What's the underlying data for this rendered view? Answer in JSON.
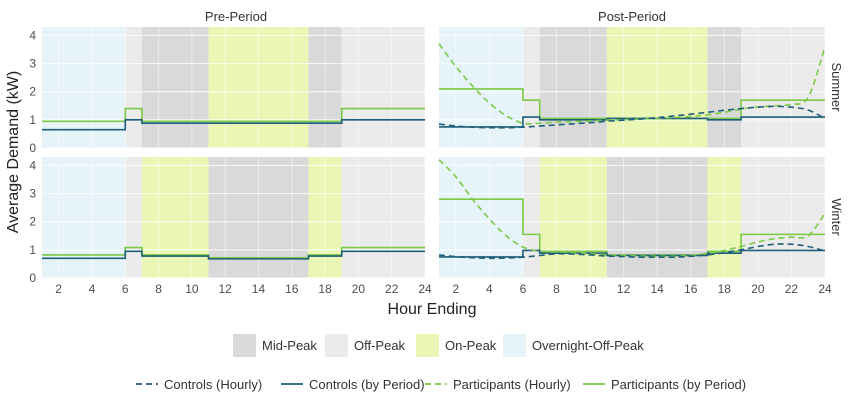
{
  "chart_data": {
    "type": "line",
    "xlabel": "Hour Ending",
    "ylabel": "Average Demand (kW)",
    "xlim": [
      1,
      24
    ],
    "ylim": [
      0,
      4.3
    ],
    "x_ticks": [
      2,
      4,
      6,
      8,
      10,
      12,
      14,
      16,
      18,
      20,
      22,
      24
    ],
    "y_ticks": [
      0,
      1,
      2,
      3,
      4
    ],
    "columns": [
      "Pre-Period",
      "Post-Period"
    ],
    "rows": [
      "Summer",
      "Winter"
    ],
    "colors": {
      "Mid-Peak": "#d9d9d9",
      "Off-Peak": "#ebebeb",
      "On-Peak": "#eaf7b4",
      "Overnight-Off-Peak": "#e6f4fa",
      "controls": "#1f5e7a",
      "participants": "#7ac943"
    },
    "period_legend": [
      "Mid-Peak",
      "Off-Peak",
      "On-Peak",
      "Overnight-Off-Peak"
    ],
    "line_legend": [
      "Controls (Hourly)",
      "Controls (by Period)",
      "Participants (Hourly)",
      "Participants (by Period)"
    ],
    "panels": [
      {
        "column": "Pre-Period",
        "row": "Summer",
        "periods": [
          {
            "start": 1,
            "end": 6,
            "type": "Overnight-Off-Peak"
          },
          {
            "start": 6,
            "end": 7,
            "type": "Off-Peak"
          },
          {
            "start": 7,
            "end": 11,
            "type": "Mid-Peak"
          },
          {
            "start": 11,
            "end": 17,
            "type": "On-Peak"
          },
          {
            "start": 17,
            "end": 19,
            "type": "Mid-Peak"
          },
          {
            "start": 19,
            "end": 24,
            "type": "Off-Peak"
          }
        ],
        "controls_by_period": [
          0.65,
          1.0,
          0.88,
          0.88,
          0.88,
          1.0
        ],
        "participants_by_period": [
          0.95,
          1.4,
          0.95,
          0.95,
          0.95,
          1.4
        ]
      },
      {
        "column": "Post-Period",
        "row": "Summer",
        "periods": [
          {
            "start": 1,
            "end": 6,
            "type": "Overnight-Off-Peak"
          },
          {
            "start": 6,
            "end": 7,
            "type": "Off-Peak"
          },
          {
            "start": 7,
            "end": 11,
            "type": "Mid-Peak"
          },
          {
            "start": 11,
            "end": 17,
            "type": "On-Peak"
          },
          {
            "start": 17,
            "end": 19,
            "type": "Mid-Peak"
          },
          {
            "start": 19,
            "end": 24,
            "type": "Off-Peak"
          }
        ],
        "controls_by_period": [
          0.75,
          1.1,
          1.0,
          1.05,
          1.0,
          1.1
        ],
        "participants_by_period": [
          2.1,
          1.7,
          1.05,
          1.05,
          1.05,
          1.7
        ],
        "controls_hourly": [
          [
            1,
            0.85
          ],
          [
            2,
            0.78
          ],
          [
            3,
            0.74
          ],
          [
            4,
            0.72
          ],
          [
            5,
            0.72
          ],
          [
            6,
            0.74
          ],
          [
            7,
            0.78
          ],
          [
            8,
            0.82
          ],
          [
            9,
            0.86
          ],
          [
            10,
            0.9
          ],
          [
            11,
            0.95
          ],
          [
            12,
            0.99
          ],
          [
            13,
            1.03
          ],
          [
            14,
            1.08
          ],
          [
            15,
            1.14
          ],
          [
            16,
            1.2
          ],
          [
            17,
            1.27
          ],
          [
            18,
            1.34
          ],
          [
            19,
            1.4
          ],
          [
            20,
            1.45
          ],
          [
            21,
            1.48
          ],
          [
            22,
            1.45
          ],
          [
            23,
            1.35
          ],
          [
            24,
            1.05
          ]
        ],
        "participants_hourly": [
          [
            1,
            3.7
          ],
          [
            2,
            2.9
          ],
          [
            3,
            2.2
          ],
          [
            4,
            1.6
          ],
          [
            5,
            1.15
          ],
          [
            6,
            0.88
          ],
          [
            7,
            0.88
          ],
          [
            8,
            0.92
          ],
          [
            9,
            0.94
          ],
          [
            10,
            0.96
          ],
          [
            11,
            0.99
          ],
          [
            12,
            1.01
          ],
          [
            13,
            1.03
          ],
          [
            14,
            1.05
          ],
          [
            15,
            1.08
          ],
          [
            16,
            1.12
          ],
          [
            17,
            1.18
          ],
          [
            18,
            1.27
          ],
          [
            19,
            1.38
          ],
          [
            20,
            1.46
          ],
          [
            21,
            1.5
          ],
          [
            22,
            1.55
          ],
          [
            23,
            1.8
          ],
          [
            24,
            3.6
          ]
        ]
      },
      {
        "column": "Pre-Period",
        "row": "Winter",
        "periods": [
          {
            "start": 1,
            "end": 6,
            "type": "Overnight-Off-Peak"
          },
          {
            "start": 6,
            "end": 7,
            "type": "Off-Peak"
          },
          {
            "start": 7,
            "end": 11,
            "type": "On-Peak"
          },
          {
            "start": 11,
            "end": 17,
            "type": "Mid-Peak"
          },
          {
            "start": 17,
            "end": 19,
            "type": "On-Peak"
          },
          {
            "start": 19,
            "end": 24,
            "type": "Off-Peak"
          }
        ],
        "controls_by_period": [
          0.7,
          0.95,
          0.78,
          0.68,
          0.78,
          0.95
        ],
        "participants_by_period": [
          0.82,
          1.08,
          0.82,
          0.72,
          0.82,
          1.08
        ]
      },
      {
        "column": "Post-Period",
        "row": "Winter",
        "periods": [
          {
            "start": 1,
            "end": 6,
            "type": "Overnight-Off-Peak"
          },
          {
            "start": 6,
            "end": 7,
            "type": "Off-Peak"
          },
          {
            "start": 7,
            "end": 11,
            "type": "On-Peak"
          },
          {
            "start": 11,
            "end": 17,
            "type": "Mid-Peak"
          },
          {
            "start": 17,
            "end": 19,
            "type": "On-Peak"
          },
          {
            "start": 19,
            "end": 24,
            "type": "Off-Peak"
          }
        ],
        "controls_by_period": [
          0.75,
          0.98,
          0.88,
          0.8,
          0.88,
          0.98
        ],
        "participants_by_period": [
          2.8,
          1.55,
          0.95,
          0.82,
          0.95,
          1.55
        ],
        "controls_hourly": [
          [
            1,
            0.82
          ],
          [
            2,
            0.76
          ],
          [
            3,
            0.72
          ],
          [
            4,
            0.7
          ],
          [
            5,
            0.71
          ],
          [
            6,
            0.74
          ],
          [
            7,
            0.8
          ],
          [
            8,
            0.86
          ],
          [
            9,
            0.85
          ],
          [
            10,
            0.82
          ],
          [
            11,
            0.78
          ],
          [
            12,
            0.76
          ],
          [
            13,
            0.74
          ],
          [
            14,
            0.74
          ],
          [
            15,
            0.74
          ],
          [
            16,
            0.77
          ],
          [
            17,
            0.82
          ],
          [
            18,
            0.9
          ],
          [
            19,
            1.0
          ],
          [
            20,
            1.12
          ],
          [
            21,
            1.2
          ],
          [
            22,
            1.2
          ],
          [
            23,
            1.12
          ],
          [
            24,
            0.96
          ]
        ],
        "participants_hourly": [
          [
            1,
            4.2
          ],
          [
            2,
            3.6
          ],
          [
            3,
            2.8
          ],
          [
            4,
            2.1
          ],
          [
            5,
            1.5
          ],
          [
            6,
            1.1
          ],
          [
            7,
            0.95
          ],
          [
            8,
            0.92
          ],
          [
            9,
            0.9
          ],
          [
            10,
            0.86
          ],
          [
            11,
            0.83
          ],
          [
            12,
            0.8
          ],
          [
            13,
            0.78
          ],
          [
            14,
            0.77
          ],
          [
            15,
            0.77
          ],
          [
            16,
            0.8
          ],
          [
            17,
            0.87
          ],
          [
            18,
            0.98
          ],
          [
            19,
            1.12
          ],
          [
            20,
            1.28
          ],
          [
            21,
            1.4
          ],
          [
            22,
            1.45
          ],
          [
            23,
            1.5
          ],
          [
            24,
            2.3
          ]
        ]
      }
    ]
  }
}
